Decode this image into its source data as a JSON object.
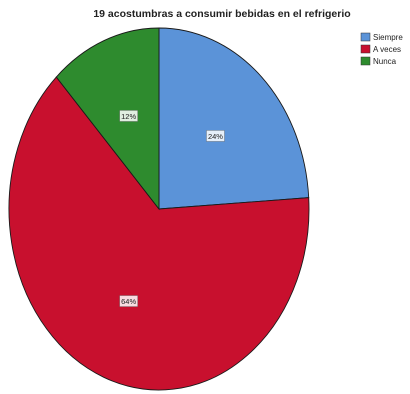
{
  "chart_data": {
    "type": "pie",
    "title": "19 acostumbras a consumir bebidas en el refrigerio",
    "slices": [
      {
        "label": "Siempre",
        "value": 24,
        "display": "24%",
        "color": "#5b93d8"
      },
      {
        "label": "A veces",
        "value": 64,
        "display": "64%",
        "color": "#c8102e"
      },
      {
        "label": "Nunca",
        "value": 12,
        "display": "12%",
        "color": "#2e8b2e"
      }
    ],
    "start_angle_deg": 0,
    "direction": "clockwise",
    "legend_position": "top-right"
  }
}
